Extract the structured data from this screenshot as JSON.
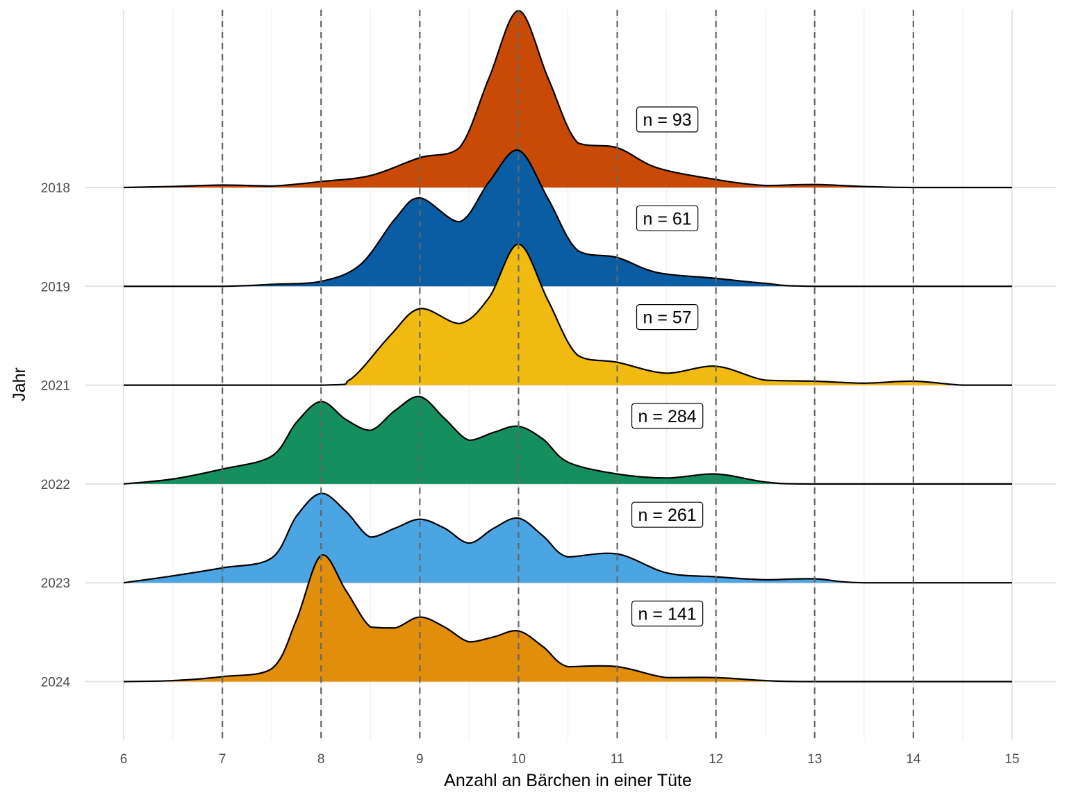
{
  "chart_data": {
    "type": "ridgeline",
    "xlabel": "Anzahl an Bärchen in einer Tüte",
    "ylabel": "Jahr",
    "xlim": [
      6,
      15
    ],
    "x_ticks": [
      "6",
      "7",
      "8",
      "9",
      "10",
      "11",
      "12",
      "13",
      "14",
      "15"
    ],
    "reference_lines": [
      7,
      8,
      9,
      10,
      11,
      12,
      13,
      14
    ],
    "grid": true,
    "series": [
      {
        "name": "2018",
        "label": "n = 93",
        "color": "#C84A06",
        "points": [
          [
            6.0,
            0.0
          ],
          [
            6.5,
            0.01
          ],
          [
            7.0,
            0.025
          ],
          [
            7.5,
            0.015
          ],
          [
            8.0,
            0.06
          ],
          [
            8.5,
            0.12
          ],
          [
            9.0,
            0.3
          ],
          [
            9.4,
            0.4
          ],
          [
            9.7,
            1.1
          ],
          [
            10.0,
            1.78
          ],
          [
            10.3,
            1.1
          ],
          [
            10.6,
            0.45
          ],
          [
            11.0,
            0.4
          ],
          [
            11.4,
            0.2
          ],
          [
            12.0,
            0.08
          ],
          [
            12.5,
            0.02
          ],
          [
            13.0,
            0.03
          ],
          [
            13.5,
            0.01
          ],
          [
            14.0,
            0.0
          ],
          [
            15.0,
            0.0
          ]
        ]
      },
      {
        "name": "2019",
        "label": "n = 61",
        "color": "#0A5CA3",
        "points": [
          [
            6.0,
            0.0
          ],
          [
            7.0,
            0.0
          ],
          [
            7.5,
            0.02
          ],
          [
            8.0,
            0.05
          ],
          [
            8.4,
            0.22
          ],
          [
            8.75,
            0.68
          ],
          [
            9.0,
            0.89
          ],
          [
            9.4,
            0.65
          ],
          [
            9.7,
            1.05
          ],
          [
            10.0,
            1.37
          ],
          [
            10.3,
            0.88
          ],
          [
            10.6,
            0.36
          ],
          [
            11.0,
            0.29
          ],
          [
            11.4,
            0.14
          ],
          [
            12.0,
            0.08
          ],
          [
            12.5,
            0.03
          ],
          [
            13.0,
            0.0
          ],
          [
            15.0,
            0.0
          ]
        ]
      },
      {
        "name": "2021",
        "label": "n = 57",
        "color": "#F0BA10",
        "points": [
          [
            6.0,
            0.0
          ],
          [
            8.0,
            0.0
          ],
          [
            8.3,
            0.06
          ],
          [
            8.7,
            0.5
          ],
          [
            9.0,
            0.77
          ],
          [
            9.4,
            0.62
          ],
          [
            9.7,
            0.88
          ],
          [
            10.0,
            1.42
          ],
          [
            10.3,
            0.85
          ],
          [
            10.6,
            0.3
          ],
          [
            11.0,
            0.23
          ],
          [
            11.5,
            0.12
          ],
          [
            12.0,
            0.19
          ],
          [
            12.5,
            0.05
          ],
          [
            13.0,
            0.04
          ],
          [
            13.5,
            0.02
          ],
          [
            14.0,
            0.04
          ],
          [
            14.5,
            0.0
          ],
          [
            15.0,
            0.0
          ]
        ]
      },
      {
        "name": "2022",
        "label": "n = 284",
        "color": "#168F5E",
        "points": [
          [
            6.0,
            0.0
          ],
          [
            6.5,
            0.05
          ],
          [
            7.0,
            0.15
          ],
          [
            7.5,
            0.28
          ],
          [
            7.75,
            0.62
          ],
          [
            8.0,
            0.83
          ],
          [
            8.25,
            0.65
          ],
          [
            8.5,
            0.54
          ],
          [
            8.75,
            0.74
          ],
          [
            9.0,
            0.88
          ],
          [
            9.25,
            0.66
          ],
          [
            9.5,
            0.44
          ],
          [
            9.75,
            0.52
          ],
          [
            10.0,
            0.58
          ],
          [
            10.25,
            0.45
          ],
          [
            10.5,
            0.22
          ],
          [
            11.0,
            0.1
          ],
          [
            11.5,
            0.06
          ],
          [
            12.0,
            0.1
          ],
          [
            12.5,
            0.02
          ],
          [
            13.0,
            0.0
          ],
          [
            15.0,
            0.0
          ]
        ]
      },
      {
        "name": "2023",
        "label": "n = 261",
        "color": "#4CA5E3",
        "points": [
          [
            6.0,
            0.0
          ],
          [
            6.5,
            0.07
          ],
          [
            7.0,
            0.15
          ],
          [
            7.5,
            0.25
          ],
          [
            7.75,
            0.67
          ],
          [
            8.0,
            0.9
          ],
          [
            8.25,
            0.72
          ],
          [
            8.5,
            0.46
          ],
          [
            8.75,
            0.55
          ],
          [
            9.0,
            0.64
          ],
          [
            9.25,
            0.55
          ],
          [
            9.5,
            0.4
          ],
          [
            9.75,
            0.55
          ],
          [
            10.0,
            0.65
          ],
          [
            10.25,
            0.47
          ],
          [
            10.5,
            0.26
          ],
          [
            11.0,
            0.29
          ],
          [
            11.5,
            0.1
          ],
          [
            12.0,
            0.06
          ],
          [
            12.5,
            0.03
          ],
          [
            13.0,
            0.04
          ],
          [
            13.5,
            0.0
          ],
          [
            15.0,
            0.0
          ]
        ]
      },
      {
        "name": "2024",
        "label": "n = 141",
        "color": "#E08E0B",
        "points": [
          [
            6.0,
            0.0
          ],
          [
            6.5,
            0.01
          ],
          [
            7.0,
            0.05
          ],
          [
            7.5,
            0.13
          ],
          [
            7.75,
            0.62
          ],
          [
            8.0,
            1.27
          ],
          [
            8.25,
            0.92
          ],
          [
            8.5,
            0.55
          ],
          [
            8.75,
            0.54
          ],
          [
            9.0,
            0.65
          ],
          [
            9.25,
            0.55
          ],
          [
            9.5,
            0.4
          ],
          [
            9.75,
            0.45
          ],
          [
            10.0,
            0.51
          ],
          [
            10.25,
            0.35
          ],
          [
            10.5,
            0.15
          ],
          [
            11.0,
            0.15
          ],
          [
            11.5,
            0.04
          ],
          [
            12.0,
            0.04
          ],
          [
            12.5,
            0.01
          ],
          [
            13.0,
            0.0
          ],
          [
            15.0,
            0.0
          ]
        ]
      }
    ]
  }
}
